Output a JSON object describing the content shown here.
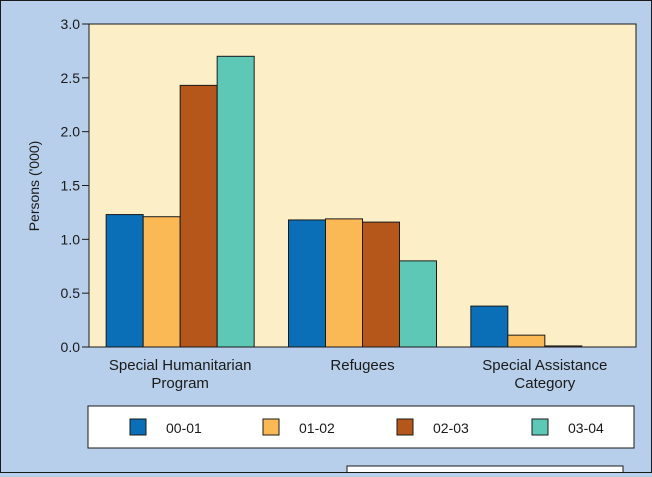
{
  "chart_data": {
    "type": "bar",
    "title": "",
    "xlabel": "",
    "ylabel": "Persons ('000)",
    "ylim": [
      0,
      3.0
    ],
    "yticks": [
      "0.0",
      "0.5",
      "1.0",
      "1.5",
      "2.0",
      "2.5",
      "3.0"
    ],
    "categories": [
      [
        "Special Humanitarian",
        "Program"
      ],
      [
        "Refugees"
      ],
      [
        "Special Assistance",
        "Category"
      ]
    ],
    "series": [
      {
        "name": "00-01",
        "color": "#0a6fb7",
        "values": [
          1.23,
          1.18,
          0.38
        ]
      },
      {
        "name": "01-02",
        "color": "#fbb955",
        "values": [
          1.21,
          1.19,
          0.11
        ]
      },
      {
        "name": "02-03",
        "color": "#b5561a",
        "values": [
          2.43,
          1.16,
          0.01
        ]
      },
      {
        "name": "03-04",
        "color": "#5ec8b6",
        "values": [
          2.7,
          0.8,
          0.0
        ]
      }
    ],
    "plot_background": "#fcefc8",
    "grid": false,
    "legend_position": "bottom"
  }
}
